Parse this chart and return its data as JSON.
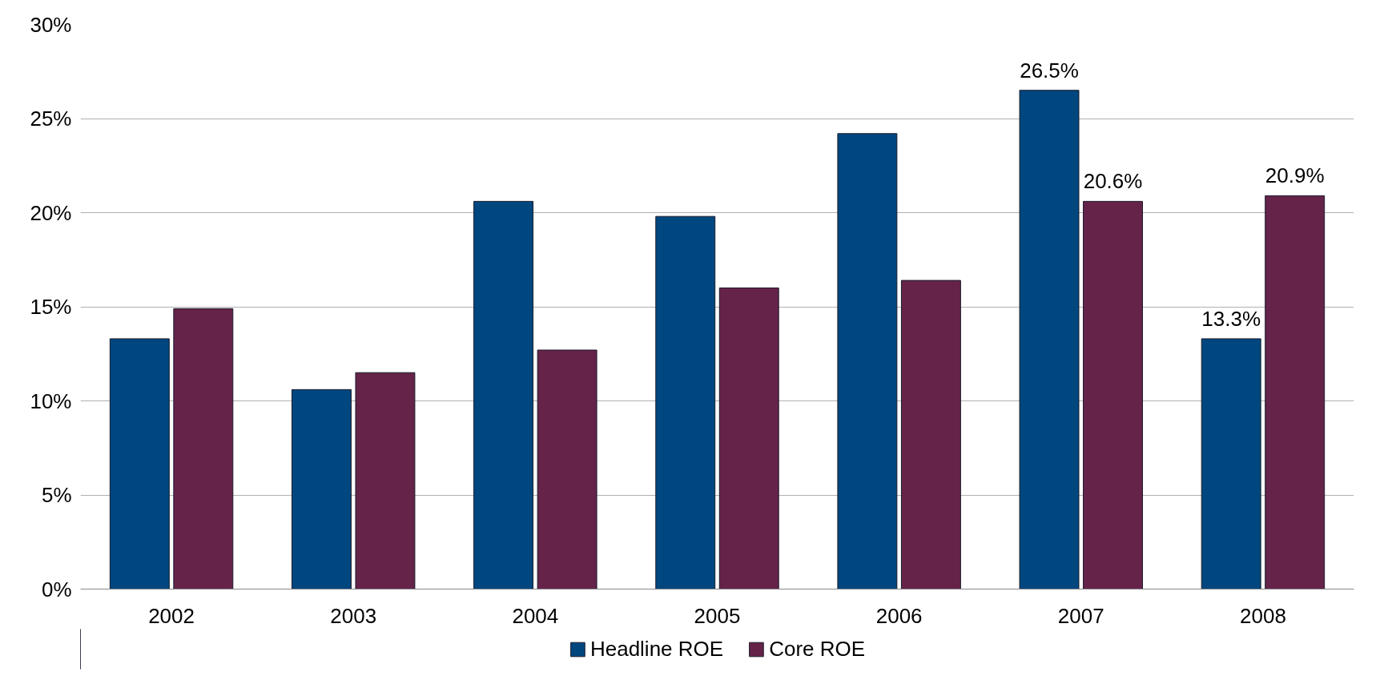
{
  "chart_data": {
    "type": "bar",
    "categories": [
      "2002",
      "2003",
      "2004",
      "2005",
      "2006",
      "2007",
      "2008"
    ],
    "series": [
      {
        "name": "Headline ROE",
        "color": "#00467f",
        "values": [
          13.3,
          10.6,
          20.6,
          19.8,
          24.2,
          26.5,
          13.3
        ],
        "value_labels": [
          null,
          null,
          null,
          null,
          null,
          "26.5%",
          "13.3%"
        ]
      },
      {
        "name": "Core ROE",
        "color": "#65234a",
        "values": [
          14.9,
          11.5,
          12.7,
          16.0,
          16.4,
          20.6,
          20.9
        ],
        "value_labels": [
          null,
          null,
          null,
          null,
          null,
          "20.6%",
          "20.9%"
        ]
      }
    ],
    "ylim": [
      0,
      30
    ],
    "yticks": [
      {
        "value": 0,
        "label": "0%"
      },
      {
        "value": 5,
        "label": "5%"
      },
      {
        "value": 10,
        "label": "10%"
      },
      {
        "value": 15,
        "label": "15%"
      },
      {
        "value": 20,
        "label": "20%"
      },
      {
        "value": 25,
        "label": "25%"
      },
      {
        "value": 30,
        "label": "30%"
      }
    ],
    "grid": "y",
    "legend": "bottom"
  }
}
